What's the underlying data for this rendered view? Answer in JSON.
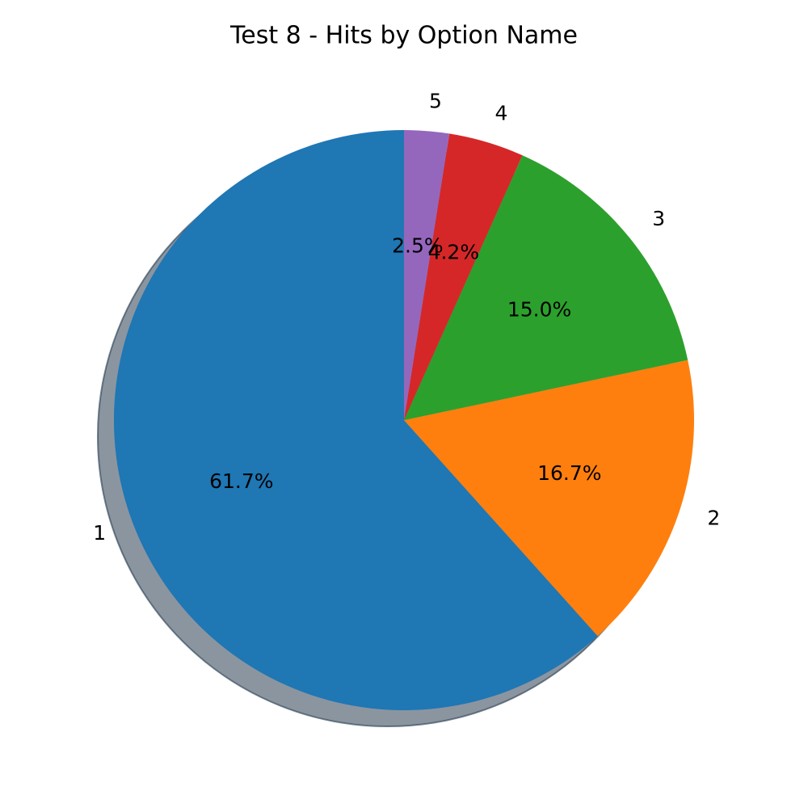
{
  "chart_data": {
    "type": "pie",
    "title": "Test 8 - Hits by Option Name",
    "categories": [
      "1",
      "2",
      "3",
      "4",
      "5"
    ],
    "values": [
      61.7,
      16.7,
      15.0,
      4.2,
      2.5
    ],
    "value_labels": [
      "61.7%",
      "16.7%",
      "15.0%",
      "4.2%",
      "2.5%"
    ],
    "colors": [
      "#1f77b4",
      "#ff7f0e",
      "#2ca02c",
      "#d62728",
      "#9467bd"
    ],
    "shadow": true
  }
}
